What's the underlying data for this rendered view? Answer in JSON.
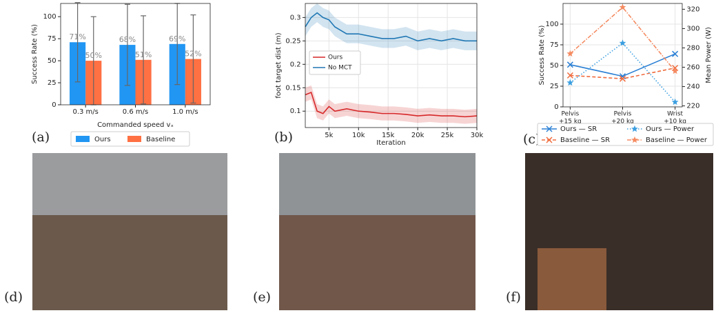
{
  "panel_labels": [
    "(a)",
    "(b)",
    "(c)",
    "(d)",
    "(e)",
    "(f)"
  ],
  "chart_data": [
    {
      "type": "bar",
      "ylabel": "Success Rate (%)",
      "xlabel": "Commanded speed vₓ",
      "categories": [
        "0.3 m/s",
        "0.6 m/s",
        "1.0 m/s"
      ],
      "series": [
        {
          "name": "Ours",
          "color": "#2196f3",
          "values": [
            71,
            68,
            69
          ],
          "value_labels": [
            "71%",
            "68%",
            "69%"
          ],
          "errors": [
            45,
            46,
            46
          ]
        },
        {
          "name": "Baseline",
          "color": "#ff7043",
          "values": [
            50,
            51,
            52
          ],
          "value_labels": [
            "50%",
            "51%",
            "52%"
          ],
          "errors": [
            50,
            50,
            50
          ]
        }
      ],
      "ylim": [
        0,
        115
      ],
      "yticks": [
        0,
        25,
        50,
        75,
        100
      ],
      "legend": "below"
    },
    {
      "type": "line",
      "ylabel": "foot target dist (m)",
      "xlabel": "Iteration",
      "x": [
        1000,
        2000,
        3000,
        4000,
        5000,
        6000,
        8000,
        10000,
        12000,
        14000,
        16000,
        18000,
        20000,
        22000,
        24000,
        26000,
        28000,
        30000
      ],
      "series": [
        {
          "name": "Ours",
          "color": "#d62728",
          "error": 0.015,
          "values": [
            0.135,
            0.14,
            0.1,
            0.095,
            0.11,
            0.1,
            0.105,
            0.1,
            0.098,
            0.095,
            0.095,
            0.093,
            0.09,
            0.092,
            0.09,
            0.09,
            0.088,
            0.09
          ]
        },
        {
          "name": "No MCT",
          "color": "#1f77b4",
          "error": 0.02,
          "values": [
            0.28,
            0.3,
            0.31,
            0.3,
            0.295,
            0.28,
            0.265,
            0.265,
            0.26,
            0.255,
            0.255,
            0.26,
            0.25,
            0.255,
            0.25,
            0.255,
            0.25,
            0.25
          ]
        }
      ],
      "xlim": [
        1000,
        30000
      ],
      "xticks": [
        {
          "value": 5000,
          "label": "5k"
        },
        {
          "value": 10000,
          "label": "10k"
        },
        {
          "value": 15000,
          "label": "15k"
        },
        {
          "value": 20000,
          "label": "20k"
        },
        {
          "value": 25000,
          "label": "25k"
        },
        {
          "value": 30000,
          "label": "30k"
        }
      ],
      "ylim": [
        0.065,
        0.33
      ],
      "yticks": [
        0.1,
        0.15,
        0.2,
        0.25,
        0.3
      ],
      "grid": true,
      "legend": "center left"
    },
    {
      "type": "line",
      "ylabel": "Success Rate (%)",
      "y2label": "Mean Power (W)",
      "categories": [
        [
          "Pelvis",
          "+15 kg"
        ],
        [
          "Pelvis",
          "+20 kg"
        ],
        [
          "Wrist",
          "+10 kg"
        ]
      ],
      "series": [
        {
          "name": "Ours — SR",
          "color": "#2a7fd4",
          "linestyle": "solid",
          "marker": "x",
          "values": [
            51,
            37,
            64
          ]
        },
        {
          "name": "Baseline — SR",
          "color": "#f06a3c",
          "linestyle": "dashed",
          "marker": "x",
          "values": [
            38,
            34,
            47
          ]
        },
        {
          "name": "Ours — Power",
          "color": "#3a9ee0",
          "linestyle": "dotted",
          "marker": "star",
          "axis": "y2",
          "values": [
            244,
            285,
            224
          ]
        },
        {
          "name": "Baseline — Power",
          "color": "#f58a60",
          "linestyle": "dashdot",
          "marker": "star",
          "axis": "y2",
          "values": [
            274,
            322,
            256
          ]
        }
      ],
      "ylim": [
        0,
        125
      ],
      "yticks": [
        0,
        25,
        50,
        75,
        100
      ],
      "y2lim": [
        219,
        326
      ],
      "y2ticks": [
        220,
        240,
        260,
        280,
        300,
        320
      ],
      "grid": true,
      "legend": "below"
    }
  ]
}
